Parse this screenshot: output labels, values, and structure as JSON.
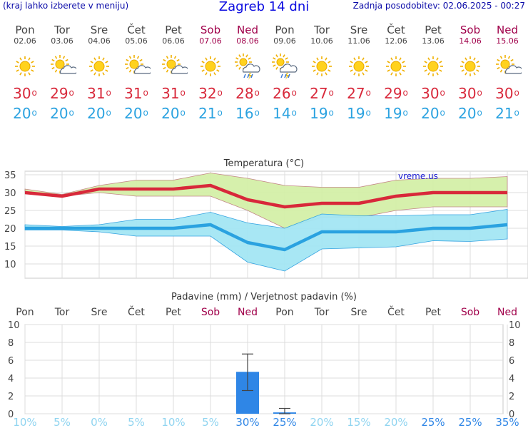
{
  "header": {
    "left_note": "(kraj lahko izberete v meniju)",
    "title": "Zagreb 14 dni",
    "updated": "Zadnja posodobitev: 02.06.2025 - 00:27"
  },
  "days": [
    {
      "name": "Pon",
      "date": "02.06",
      "icon": "sun-icon",
      "max": "30",
      "min": "20",
      "weekend": false
    },
    {
      "name": "Tor",
      "date": "03.06",
      "icon": "sun-cloud-icon",
      "max": "29",
      "min": "20",
      "weekend": false
    },
    {
      "name": "Sre",
      "date": "04.06",
      "icon": "sun-icon",
      "max": "31",
      "min": "20",
      "weekend": false
    },
    {
      "name": "Čet",
      "date": "05.06",
      "icon": "sun-cloud-icon",
      "max": "31",
      "min": "20",
      "weekend": false
    },
    {
      "name": "Pet",
      "date": "06.06",
      "icon": "sun-cloud-icon",
      "max": "31",
      "min": "20",
      "weekend": false
    },
    {
      "name": "Sob",
      "date": "07.06",
      "icon": "sun-icon",
      "max": "32",
      "min": "21",
      "weekend": true
    },
    {
      "name": "Ned",
      "date": "08.06",
      "icon": "thunderstorm-icon",
      "max": "28",
      "min": "16",
      "weekend": true
    },
    {
      "name": "Pon",
      "date": "09.06",
      "icon": "thunderstorm-icon",
      "max": "26",
      "min": "14",
      "weekend": false
    },
    {
      "name": "Tor",
      "date": "10.06",
      "icon": "sun-icon",
      "max": "27",
      "min": "19",
      "weekend": false
    },
    {
      "name": "Sre",
      "date": "11.06",
      "icon": "sun-icon",
      "max": "27",
      "min": "19",
      "weekend": false
    },
    {
      "name": "Čet",
      "date": "12.06",
      "icon": "sun-icon",
      "max": "29",
      "min": "19",
      "weekend": false
    },
    {
      "name": "Pet",
      "date": "13.06",
      "icon": "sun-icon",
      "max": "30",
      "min": "20",
      "weekend": false
    },
    {
      "name": "Sob",
      "date": "14.06",
      "icon": "sun-icon",
      "max": "30",
      "min": "20",
      "weekend": true
    },
    {
      "name": "Ned",
      "date": "15.06",
      "icon": "sun-cloud-icon",
      "max": "30",
      "min": "21",
      "weekend": true
    }
  ],
  "degree_symbol": "o",
  "colors": {
    "max": "#d8283a",
    "min": "#2aa2e0",
    "max_band": "#d4f0a8",
    "min_band": "#a4e6f4",
    "precip": "#2f86e6",
    "weekend": "#a0004a"
  },
  "chart_data": [
    {
      "type": "line",
      "title": "Temperatura (°C)",
      "watermark": "vreme.us",
      "ylim": [
        6,
        36
      ],
      "yticks": [
        10,
        15,
        20,
        25,
        30,
        35
      ],
      "grid": true,
      "series": [
        {
          "values": [
            30,
            29,
            31,
            31,
            31,
            32,
            28,
            26,
            27,
            27,
            29,
            30,
            30,
            30
          ]
        },
        {
          "values": [
            20,
            20,
            20,
            20,
            20,
            21,
            16,
            14,
            19,
            19,
            19,
            20,
            20,
            21
          ]
        }
      ],
      "bands": [
        {
          "lower": [
            30,
            29,
            30,
            29,
            29,
            29,
            25,
            20,
            23,
            23,
            25,
            26,
            26,
            26
          ],
          "upper": [
            31,
            29.5,
            32,
            33.5,
            33.5,
            35.5,
            34,
            32,
            31.5,
            31.5,
            33.5,
            34,
            34,
            34.5
          ]
        },
        {
          "lower": [
            19.5,
            19.5,
            19,
            17.8,
            17.8,
            17.8,
            10.5,
            8,
            14.2,
            14.5,
            14.8,
            16.5,
            16.3,
            17
          ]
        }
      ],
      "band_upper_min": [
        21,
        20.5,
        21,
        22.5,
        22.5,
        24.5,
        21.5,
        20,
        24,
        23.5,
        23.5,
        23.8,
        23.8,
        25.3
      ]
    },
    {
      "type": "bar",
      "title": "Padavine (mm) / Verjetnost padavin (%)",
      "ylim": [
        0,
        10
      ],
      "yticks": [
        0,
        2,
        4,
        6,
        8,
        10
      ],
      "values": [
        0,
        0,
        0,
        0,
        0,
        0,
        4.7,
        0.15,
        0,
        0,
        0,
        0,
        0,
        0
      ],
      "error_bars": [
        null,
        null,
        null,
        null,
        null,
        null,
        [
          2.6,
          6.7
        ],
        [
          0,
          0.6
        ],
        null,
        null,
        null,
        null,
        null,
        null
      ],
      "probability": [
        "10%",
        "5%",
        "0%",
        "5%",
        "10%",
        "5%",
        "30%",
        "25%",
        "20%",
        "15%",
        "20%",
        "25%",
        "25%",
        "35%"
      ]
    }
  ]
}
